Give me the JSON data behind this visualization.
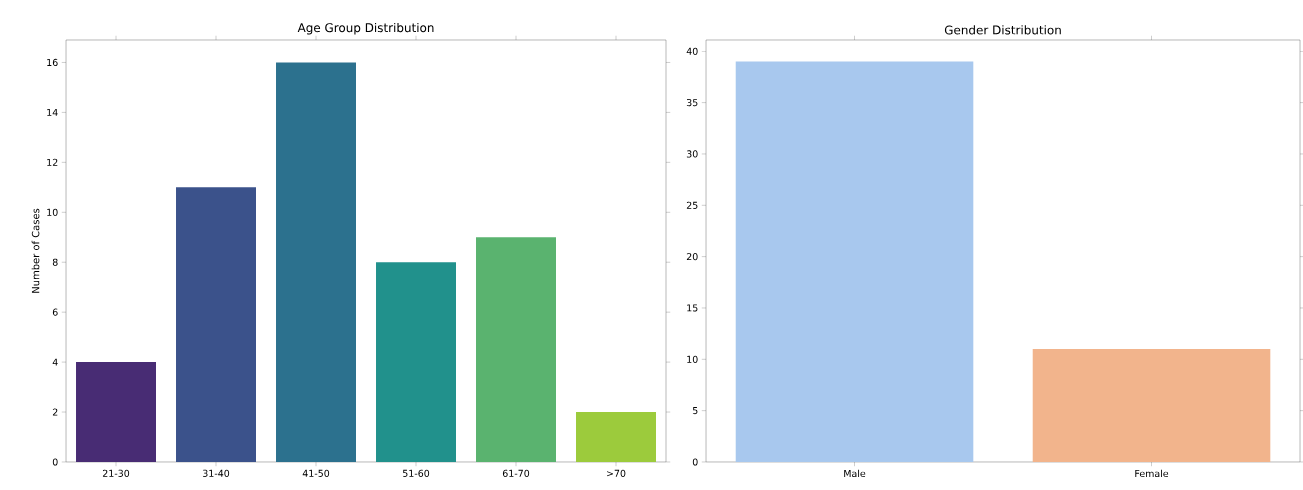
{
  "chart_data": [
    {
      "type": "bar",
      "title": "Age Group Distribution",
      "ylabel": "Number of Cases",
      "categories": [
        "21-30",
        "31-40",
        "41-50",
        "51-60",
        "61-70",
        ">70"
      ],
      "values": [
        4,
        11,
        16,
        8,
        9,
        2
      ],
      "colors": [
        "#482c74",
        "#3b528b",
        "#2c718e",
        "#21918c",
        "#5ab36f",
        "#9ccb3c"
      ],
      "ylim": [
        0,
        16.9
      ],
      "yticks": [
        0,
        2,
        4,
        6,
        8,
        10,
        12,
        14,
        16
      ]
    },
    {
      "type": "bar",
      "title": "Gender Distribution",
      "categories": [
        "Male",
        "Female"
      ],
      "values": [
        39,
        11
      ],
      "colors": [
        "#a8c8ee",
        "#f2b48c"
      ],
      "ylim": [
        0,
        41.1
      ],
      "yticks": [
        0,
        5,
        10,
        15,
        20,
        25,
        30,
        35,
        40
      ]
    }
  ]
}
